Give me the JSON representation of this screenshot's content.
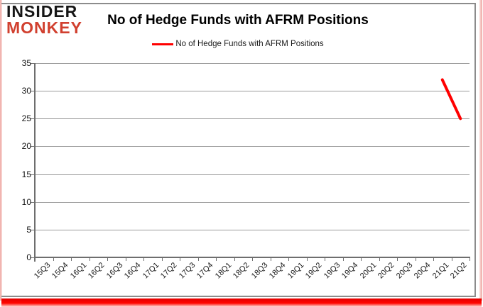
{
  "brand": {
    "line1": "INSIDER",
    "line2": "MONKEY"
  },
  "header": {
    "title": "No of Hedge Funds with AFRM Positions"
  },
  "legend": {
    "label": "No of Hedge Funds with AFRM Positions"
  },
  "colors": {
    "series_line": "#ff0000",
    "brand_black": "#161616",
    "brand_red": "#d1402f",
    "gridline": "#9a9a9a",
    "axis": "#6e6e6e",
    "chart_border": "#8c8c8c",
    "pink_edge": "#eea9a4",
    "bottom_bar": "#ff0600"
  },
  "y_axis": {
    "ticks": [
      0,
      5,
      10,
      15,
      20,
      25,
      30,
      35
    ]
  },
  "chart_data": {
    "type": "line",
    "title": "No of Hedge Funds with AFRM Positions",
    "xlabel": "",
    "ylabel": "",
    "categories": [
      "15Q3",
      "15Q4",
      "16Q1",
      "16Q2",
      "16Q3",
      "16Q4",
      "17Q1",
      "17Q2",
      "17Q3",
      "17Q4",
      "18Q1",
      "18Q2",
      "18Q3",
      "18Q4",
      "19Q1",
      "19Q2",
      "19Q3",
      "19Q4",
      "20Q1",
      "20Q2",
      "20Q3",
      "20Q4",
      "21Q1",
      "21Q2"
    ],
    "series": [
      {
        "name": "No of Hedge Funds with AFRM Positions",
        "color": "#ff0000",
        "values": [
          null,
          null,
          null,
          null,
          null,
          null,
          null,
          null,
          null,
          null,
          null,
          null,
          null,
          null,
          null,
          null,
          null,
          null,
          null,
          null,
          null,
          null,
          32,
          25
        ]
      }
    ],
    "ylim": [
      0,
      35
    ],
    "ytick_interval": 5,
    "grid": true,
    "legend_position": "top"
  }
}
